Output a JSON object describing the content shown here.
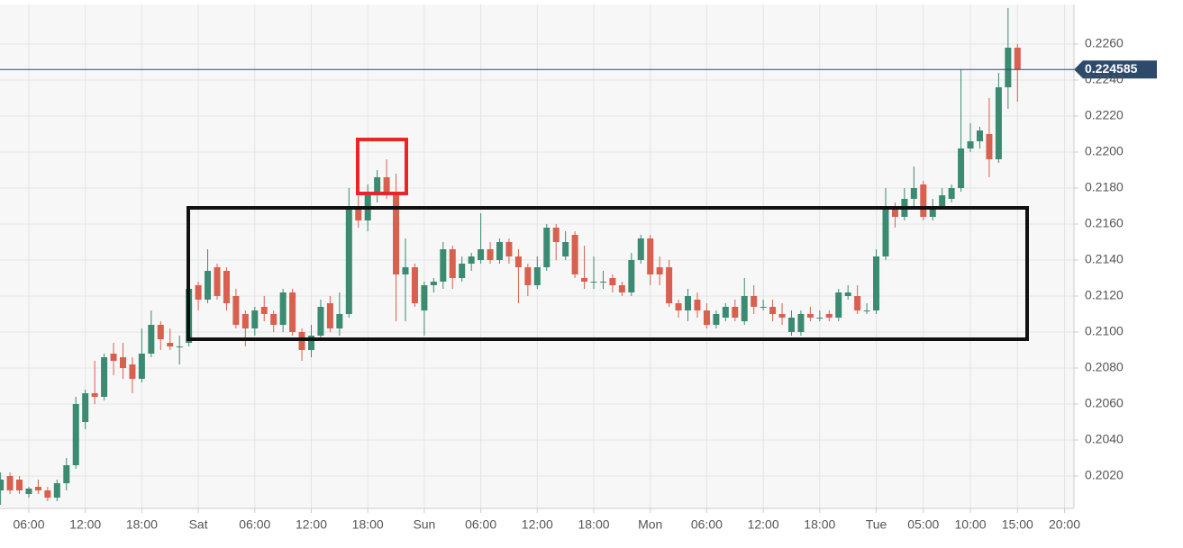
{
  "chart_data": {
    "type": "candlestick",
    "colors": {
      "up": "#3b8a72",
      "down": "#d7604e"
    },
    "x": [
      3,
      4,
      5,
      6,
      7,
      8,
      9,
      10,
      11,
      12,
      13,
      14,
      15,
      16,
      17,
      18,
      19,
      20,
      21,
      22,
      23,
      24,
      25,
      26,
      27,
      28,
      29,
      30,
      31,
      32,
      33,
      34,
      35,
      36,
      37,
      38,
      39,
      40,
      41,
      42,
      43,
      44,
      45,
      46,
      47,
      48,
      49,
      50,
      51,
      52,
      53,
      54,
      55,
      56,
      57,
      58,
      59,
      60,
      61,
      62,
      63,
      64,
      65,
      66,
      67,
      68,
      69,
      70,
      71,
      72,
      73,
      74,
      75,
      76,
      77,
      78,
      79,
      80,
      81,
      82,
      83,
      84,
      85,
      86,
      87,
      88,
      89,
      90,
      91,
      92,
      93,
      94,
      95,
      96,
      97,
      98,
      99,
      100,
      101,
      102,
      103,
      104,
      105,
      106,
      107,
      108,
      109,
      110,
      111
    ],
    "open": [
      0.2012,
      0.202,
      0.2018,
      0.201,
      0.2014,
      0.2012,
      0.2008,
      0.2016,
      0.2026,
      0.205,
      0.2066,
      0.2064,
      0.2088,
      0.2086,
      0.2082,
      0.2074,
      0.2088,
      0.2104,
      0.2094,
      0.2092,
      0.2094,
      0.2126,
      0.2118,
      0.2136,
      0.2134,
      0.212,
      0.211,
      0.2102,
      0.2114,
      0.211,
      0.2104,
      0.2122,
      0.21,
      0.209,
      0.2098,
      0.2116,
      0.2102,
      0.211,
      0.217,
      0.2162,
      0.2176,
      0.2186,
      0.2176,
      0.2132,
      0.2136,
      0.2112,
      0.2126,
      0.2128,
      0.2146,
      0.213,
      0.2138,
      0.214,
      0.2146,
      0.214,
      0.215,
      0.2142,
      0.2136,
      0.2126,
      0.2136,
      0.2158,
      0.2142,
      0.2154,
      0.213,
      0.2128,
      0.2128,
      0.213,
      0.2126,
      0.2122,
      0.214,
      0.2152,
      0.2136,
      0.2136,
      0.2116,
      0.2112,
      0.2118,
      0.2112,
      0.2104,
      0.2108,
      0.2114,
      0.2106,
      0.212,
      0.2114,
      0.2114,
      0.211,
      0.21,
      0.21,
      0.211,
      0.2108,
      0.211,
      0.2108,
      0.212,
      0.212,
      0.2112,
      0.2112,
      0.2142,
      0.2168,
      0.2164,
      0.2174,
      0.2182,
      0.2164,
      0.217,
      0.2174,
      0.218,
      0.2202,
      0.2206,
      0.221,
      0.2196,
      0.2236,
      0.2258
    ],
    "high": [
      0.2022,
      0.2022,
      0.202,
      0.2014,
      0.2018,
      0.2014,
      0.2018,
      0.203,
      0.2064,
      0.2068,
      0.2084,
      0.2088,
      0.2094,
      0.2094,
      0.2086,
      0.2102,
      0.2112,
      0.2106,
      0.2102,
      0.2098,
      0.2126,
      0.2128,
      0.2146,
      0.2138,
      0.2136,
      0.2124,
      0.2112,
      0.2114,
      0.212,
      0.2112,
      0.2124,
      0.2124,
      0.2102,
      0.2104,
      0.2118,
      0.212,
      0.2122,
      0.218,
      0.2176,
      0.2182,
      0.219,
      0.2196,
      0.2188,
      0.2152,
      0.2138,
      0.2128,
      0.213,
      0.215,
      0.2148,
      0.2142,
      0.2144,
      0.2166,
      0.215,
      0.2152,
      0.2152,
      0.2146,
      0.2138,
      0.2142,
      0.216,
      0.216,
      0.2156,
      0.2156,
      0.2148,
      0.2142,
      0.2134,
      0.2132,
      0.2128,
      0.2144,
      0.2154,
      0.2154,
      0.2142,
      0.214,
      0.2118,
      0.2124,
      0.2122,
      0.2116,
      0.2112,
      0.2116,
      0.2118,
      0.213,
      0.2126,
      0.2118,
      0.2118,
      0.2116,
      0.2112,
      0.2112,
      0.2114,
      0.2112,
      0.2112,
      0.2124,
      0.2126,
      0.2126,
      0.2116,
      0.2146,
      0.218,
      0.2172,
      0.218,
      0.2192,
      0.2184,
      0.2174,
      0.218,
      0.2182,
      0.2246,
      0.2216,
      0.2214,
      0.223,
      0.2244,
      0.228,
      0.226
    ],
    "low": [
      0.2004,
      0.201,
      0.201,
      0.2008,
      0.201,
      0.2006,
      0.2006,
      0.2012,
      0.2024,
      0.2046,
      0.206,
      0.2062,
      0.2076,
      0.2074,
      0.2066,
      0.2072,
      0.2086,
      0.209,
      0.209,
      0.2082,
      0.2092,
      0.2112,
      0.2116,
      0.2118,
      0.2112,
      0.2102,
      0.2092,
      0.2098,
      0.2106,
      0.21,
      0.21,
      0.2098,
      0.2084,
      0.2086,
      0.2096,
      0.21,
      0.2098,
      0.2108,
      0.2158,
      0.2156,
      0.2172,
      0.2174,
      0.2106,
      0.2106,
      0.2114,
      0.2098,
      0.2122,
      0.2124,
      0.2124,
      0.2128,
      0.2134,
      0.2138,
      0.2138,
      0.2138,
      0.2138,
      0.2116,
      0.212,
      0.2124,
      0.2134,
      0.214,
      0.214,
      0.213,
      0.2124,
      0.2124,
      0.2124,
      0.2122,
      0.212,
      0.212,
      0.2138,
      0.2126,
      0.2126,
      0.2114,
      0.2108,
      0.2106,
      0.2108,
      0.2102,
      0.2102,
      0.2106,
      0.2106,
      0.2104,
      0.211,
      0.2112,
      0.2106,
      0.2104,
      0.2098,
      0.2098,
      0.2106,
      0.2106,
      0.2106,
      0.2106,
      0.2118,
      0.211,
      0.211,
      0.211,
      0.214,
      0.2158,
      0.2162,
      0.217,
      0.2162,
      0.2162,
      0.2168,
      0.2172,
      0.2178,
      0.22,
      0.2202,
      0.2186,
      0.2194,
      0.2224,
      0.2228
    ],
    "close": [
      0.2018,
      0.2012,
      0.2012,
      0.2013,
      0.2012,
      0.2008,
      0.2016,
      0.2026,
      0.206,
      0.2066,
      0.2064,
      0.2086,
      0.2084,
      0.208,
      0.2074,
      0.2088,
      0.2104,
      0.2096,
      0.2092,
      0.2092,
      0.2124,
      0.2118,
      0.2134,
      0.212,
      0.2116,
      0.2104,
      0.2102,
      0.2112,
      0.211,
      0.2104,
      0.2122,
      0.21,
      0.209,
      0.2098,
      0.2114,
      0.2102,
      0.211,
      0.217,
      0.2162,
      0.2176,
      0.2186,
      0.2176,
      0.2132,
      0.2136,
      0.2116,
      0.2126,
      0.2128,
      0.2146,
      0.213,
      0.2138,
      0.2142,
      0.2146,
      0.214,
      0.215,
      0.2142,
      0.2136,
      0.2126,
      0.2136,
      0.2158,
      0.215,
      0.215,
      0.2132,
      0.2128,
      0.2128,
      0.2128,
      0.2126,
      0.2122,
      0.214,
      0.2152,
      0.2132,
      0.2132,
      0.2116,
      0.2112,
      0.212,
      0.2112,
      0.2104,
      0.211,
      0.2114,
      0.2108,
      0.212,
      0.2114,
      0.2114,
      0.211,
      0.2108,
      0.2108,
      0.211,
      0.2108,
      0.2108,
      0.2108,
      0.2122,
      0.2122,
      0.2112,
      0.2112,
      0.2142,
      0.2168,
      0.2164,
      0.2174,
      0.218,
      0.2164,
      0.217,
      0.2176,
      0.218,
      0.2202,
      0.2206,
      0.2212,
      0.2196,
      0.2236,
      0.2258,
      0.2246
    ],
    "last_price": 0.224585,
    "xlim": [
      2.94,
      117
    ],
    "ylim": [
      0.2002,
      0.2282
    ],
    "xticks": [
      {
        "value": 6,
        "label": "06:00"
      },
      {
        "value": 12,
        "label": "12:00"
      },
      {
        "value": 18,
        "label": "18:00"
      },
      {
        "value": 24,
        "label": "Sat"
      },
      {
        "value": 30,
        "label": "06:00"
      },
      {
        "value": 36,
        "label": "12:00"
      },
      {
        "value": 42,
        "label": "18:00"
      },
      {
        "value": 48,
        "label": "Sun"
      },
      {
        "value": 54,
        "label": "06:00"
      },
      {
        "value": 60,
        "label": "12:00"
      },
      {
        "value": 66,
        "label": "18:00"
      },
      {
        "value": 72,
        "label": "Mon"
      },
      {
        "value": 78,
        "label": "06:00"
      },
      {
        "value": 84,
        "label": "12:00"
      },
      {
        "value": 90,
        "label": "18:00"
      },
      {
        "value": 96,
        "label": "Tue"
      },
      {
        "value": 101,
        "label": "05:00"
      },
      {
        "value": 106,
        "label": "10:00"
      },
      {
        "value": 111,
        "label": "15:00"
      },
      {
        "value": 116,
        "label": "20:00"
      }
    ],
    "yticks": [
      {
        "value": 0.202,
        "label": "0.2020"
      },
      {
        "value": 0.204,
        "label": "0.2040"
      },
      {
        "value": 0.206,
        "label": "0.2060"
      },
      {
        "value": 0.208,
        "label": "0.2080"
      },
      {
        "value": 0.21,
        "label": "0.2100"
      },
      {
        "value": 0.212,
        "label": "0.2120"
      },
      {
        "value": 0.214,
        "label": "0.2140"
      },
      {
        "value": 0.216,
        "label": "0.2160"
      },
      {
        "value": 0.218,
        "label": "0.2180"
      },
      {
        "value": 0.22,
        "label": "0.2200"
      },
      {
        "value": 0.222,
        "label": "0.2220"
      },
      {
        "value": 0.224,
        "label": "0.2240"
      },
      {
        "value": 0.226,
        "label": "0.2260"
      }
    ],
    "grid": true
  }
}
